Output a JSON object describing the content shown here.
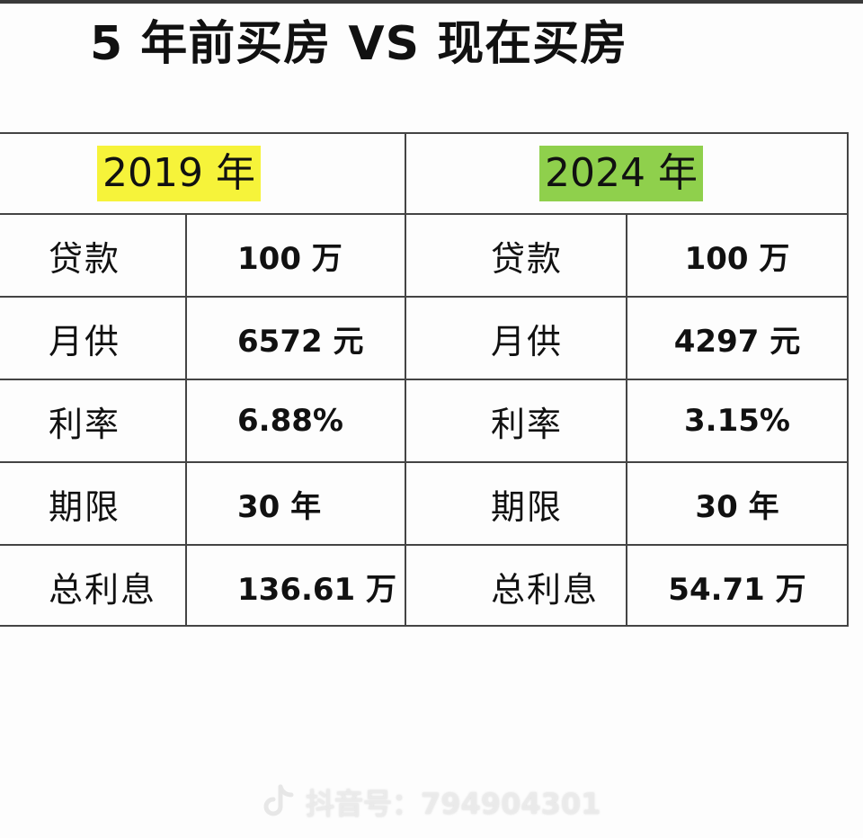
{
  "title": "5 年前买房 VS 现在买房",
  "left": {
    "year": "2019 年",
    "year_color": "#f6f33a",
    "rows": [
      {
        "label": "贷款",
        "value": "100 万"
      },
      {
        "label": "月供",
        "value": "6572 元"
      },
      {
        "label": "利率",
        "value": "6.88%"
      },
      {
        "label": "期限",
        "value": "30 年"
      },
      {
        "label": "总利息",
        "value": "136.61 万"
      }
    ]
  },
  "right": {
    "year": "2024 年",
    "year_color": "#8fd04c",
    "rows": [
      {
        "label": "贷款",
        "value": "100 万"
      },
      {
        "label": "月供",
        "value": "4297 元"
      },
      {
        "label": "利率",
        "value": "3.15%"
      },
      {
        "label": "期限",
        "value": "30 年"
      },
      {
        "label": "总利息",
        "value": "54.71 万"
      }
    ]
  },
  "watermark": {
    "icon": "tiktok-icon",
    "text": "抖音号：794904301"
  }
}
